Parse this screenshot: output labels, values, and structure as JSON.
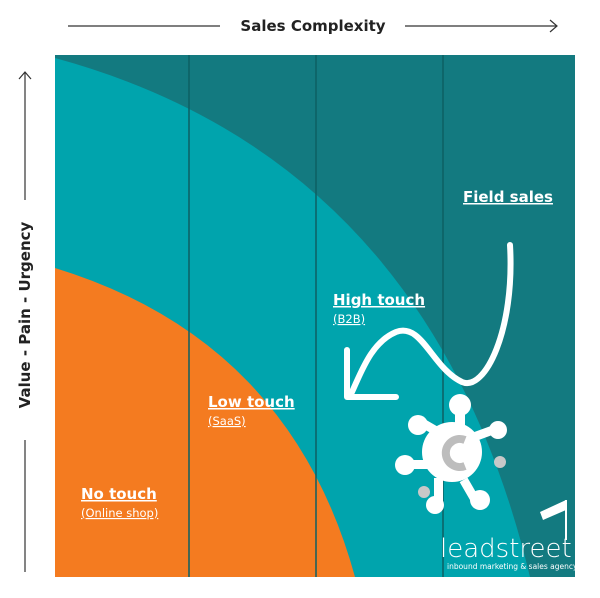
{
  "header": {
    "x_axis": "Sales Complexity",
    "y_axis": "Value - Pain - Urgency"
  },
  "segments": [
    {
      "label": "Field sales"
    },
    {
      "label": "High touch",
      "sublabel": "(B2B)"
    },
    {
      "label": "Low touch",
      "sublabel": "(SaaS)"
    },
    {
      "label": "No touch",
      "sublabel": "(Online shop)"
    }
  ],
  "logo": {
    "name": "leadstreet",
    "tagline": "inbound marketing & sales agency"
  }
}
